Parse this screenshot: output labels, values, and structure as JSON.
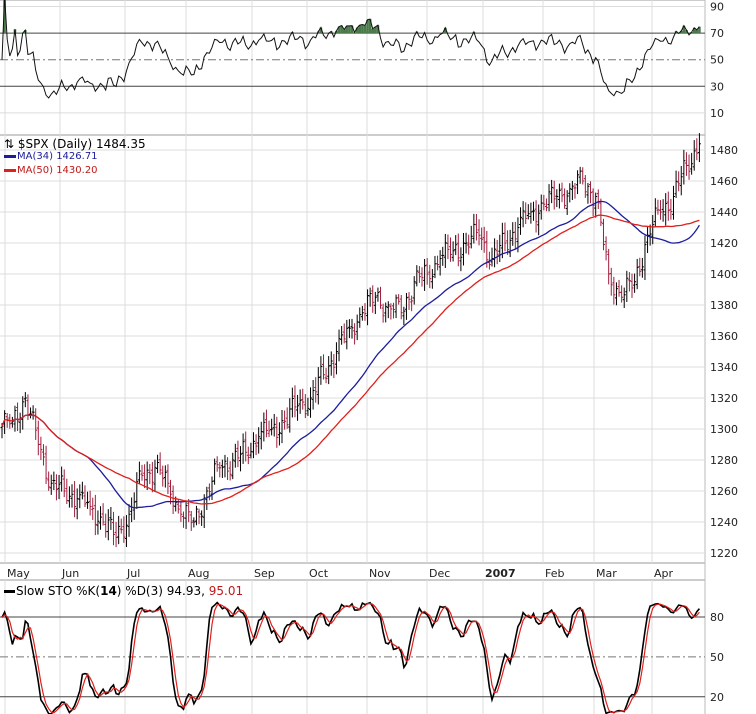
{
  "chart_data": {
    "type": "ohlc",
    "title": "$SPX (Daily) 1484.35",
    "symbol_label": "$SPX (Daily)",
    "last_value": "1484.35",
    "x_tick_labels": [
      "May",
      "Jun",
      "Jul",
      "Aug",
      "Sep",
      "Oct",
      "Nov",
      "Dec",
      "2007",
      "Feb",
      "Mar",
      "Apr"
    ],
    "price_axis": {
      "ylim": [
        1210,
        1490
      ],
      "ticks": [
        1220,
        1240,
        1260,
        1280,
        1300,
        1320,
        1340,
        1360,
        1380,
        1400,
        1420,
        1440,
        1460,
        1480
      ]
    },
    "weekly_closes": [
      1305,
      1320,
      1290,
      1265,
      1260,
      1255,
      1250,
      1240,
      1230,
      1245,
      1270,
      1275,
      1265,
      1245,
      1240,
      1260,
      1275,
      1280,
      1285,
      1295,
      1300,
      1305,
      1315,
      1320,
      1335,
      1350,
      1365,
      1375,
      1385,
      1380,
      1375,
      1395,
      1400,
      1410,
      1415,
      1420,
      1425,
      1410,
      1420,
      1430,
      1440,
      1445,
      1450,
      1455,
      1460,
      1450,
      1400,
      1385,
      1395,
      1425,
      1440,
      1450,
      1470,
      1484
    ],
    "series": [
      {
        "name": "MA(34)",
        "value_label": "1426.71",
        "color": "#1c1c9c",
        "period": 34
      },
      {
        "name": "MA(50)",
        "value_label": "1430.20",
        "color": "#e0201c",
        "period": 50
      }
    ],
    "rsi_panel": {
      "ticks": [
        90,
        70,
        50,
        30,
        10
      ],
      "ylim": [
        0,
        100
      ],
      "overbought": 70,
      "oversold": 30
    },
    "stoch_panel": {
      "label_prefix": "Slow STO %K(",
      "k_period": "14",
      "label_mid": ") %D(3) ",
      "k_value": "94.93,",
      "d_value": "95.01",
      "ticks": [
        80,
        50,
        20
      ],
      "ylim": [
        0,
        100
      ]
    },
    "colors": {
      "bar": "#000000",
      "down_bar": "#a01c3c",
      "grid": "#dcdcdc",
      "k_line": "#000000",
      "d_line": "#e0201c",
      "rsi_fill": "#4a7a4a"
    }
  }
}
